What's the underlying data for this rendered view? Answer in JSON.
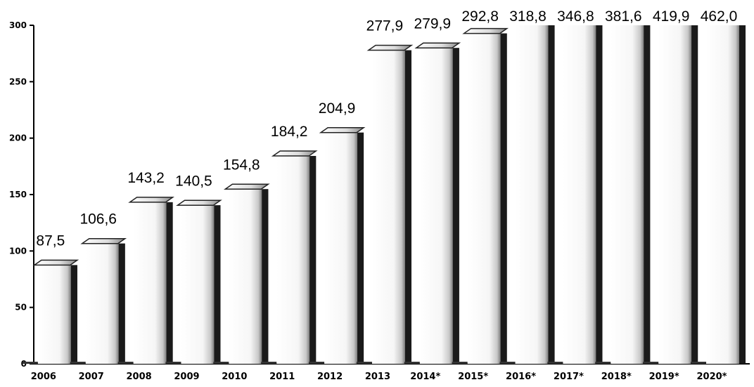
{
  "chart_data": {
    "type": "bar",
    "title": "",
    "xlabel": "",
    "ylabel": "",
    "ylim": [
      0,
      300
    ],
    "yticks": [
      0,
      50,
      100,
      150,
      200,
      250,
      300
    ],
    "ytick_labels": [
      "0",
      "50",
      "100",
      "150",
      "200",
      "250",
      "300"
    ],
    "grid": false,
    "legend": "none",
    "style": "3d-cylinder",
    "categories": [
      "2006",
      "2007",
      "2008",
      "2009",
      "2010",
      "2011",
      "2012",
      "2013",
      "2014*",
      "2015*",
      "2016*",
      "2017*",
      "2018*",
      "2019*",
      "2020*"
    ],
    "values": [
      87.5,
      106.6,
      143.2,
      140.5,
      154.8,
      184.2,
      204.9,
      277.9,
      279.9,
      292.8,
      318.8,
      346.8,
      381.6,
      419.9,
      462.0
    ],
    "data_labels": [
      "87,5",
      "106,6",
      "143,2",
      "140,5",
      "154,8",
      "184,2",
      "204,9",
      "277,9",
      "279,9",
      "292,8",
      "318,8",
      "346,8",
      "381,6",
      "419,9",
      "462,0"
    ],
    "colors": {
      "bar_dark": "#1a1a1a",
      "bar_mid": "#777777",
      "bar_light": "#f4f4f4",
      "axis": "#000000"
    }
  }
}
